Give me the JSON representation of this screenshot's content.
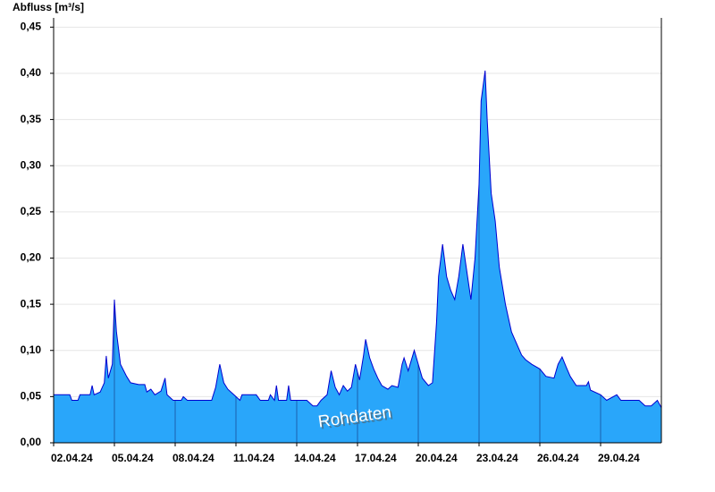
{
  "chart_data": {
    "type": "area",
    "y_label": "Abfluss [m³/s]",
    "annotation": "Rohdaten",
    "x": [
      0,
      0.8,
      0.9,
      1.2,
      1.3,
      1.8,
      1.9,
      2.0,
      2.3,
      2.5,
      2.6,
      2.7,
      2.9,
      3.0,
      3.1,
      3.3,
      3.6,
      3.8,
      4.2,
      4.5,
      4.6,
      4.8,
      5.0,
      5.3,
      5.5,
      5.6,
      5.9,
      6.3,
      6.4,
      6.6,
      7.5,
      7.8,
      8.0,
      8.2,
      8.4,
      8.6,
      8.9,
      9.2,
      9.3,
      10.0,
      10.2,
      10.6,
      10.7,
      10.9,
      11.0,
      11.1,
      11.5,
      11.6,
      11.7,
      12.5,
      12.8,
      13.0,
      13.2,
      13.5,
      13.7,
      13.9,
      14.1,
      14.3,
      14.5,
      14.7,
      14.9,
      15.1,
      15.3,
      15.4,
      15.6,
      15.8,
      16.0,
      16.2,
      16.5,
      16.7,
      17.0,
      17.2,
      17.3,
      17.5,
      17.8,
      18.0,
      18.2,
      18.5,
      18.7,
      18.9,
      19.0,
      19.2,
      19.4,
      19.6,
      19.8,
      20.0,
      20.2,
      20.4,
      20.6,
      20.8,
      21.0,
      21.1,
      21.3,
      21.4,
      21.6,
      21.8,
      22.0,
      22.3,
      22.6,
      22.9,
      23.1,
      23.3,
      23.6,
      24.0,
      24.3,
      24.7,
      24.9,
      25.1,
      25.3,
      25.5,
      25.8,
      26.3,
      26.4,
      26.5,
      27.0,
      27.3,
      27.8,
      28.0,
      28.9,
      29.2,
      29.5,
      29.8,
      30.0
    ],
    "series": [
      {
        "color": "#29a6fa",
        "line_color": "#0000d0",
        "values": [
          0.052,
          0.052,
          0.046,
          0.046,
          0.052,
          0.052,
          0.062,
          0.052,
          0.055,
          0.065,
          0.094,
          0.07,
          0.085,
          0.155,
          0.12,
          0.085,
          0.072,
          0.065,
          0.063,
          0.063,
          0.055,
          0.058,
          0.052,
          0.056,
          0.07,
          0.052,
          0.046,
          0.046,
          0.05,
          0.046,
          0.046,
          0.046,
          0.06,
          0.085,
          0.065,
          0.058,
          0.052,
          0.046,
          0.052,
          0.052,
          0.046,
          0.046,
          0.052,
          0.046,
          0.062,
          0.046,
          0.046,
          0.062,
          0.046,
          0.046,
          0.04,
          0.04,
          0.046,
          0.052,
          0.078,
          0.06,
          0.052,
          0.062,
          0.056,
          0.06,
          0.085,
          0.068,
          0.095,
          0.112,
          0.092,
          0.08,
          0.07,
          0.062,
          0.058,
          0.062,
          0.06,
          0.085,
          0.092,
          0.078,
          0.1,
          0.085,
          0.07,
          0.062,
          0.065,
          0.13,
          0.18,
          0.215,
          0.18,
          0.165,
          0.155,
          0.18,
          0.215,
          0.185,
          0.155,
          0.2,
          0.28,
          0.37,
          0.403,
          0.35,
          0.27,
          0.24,
          0.19,
          0.15,
          0.12,
          0.105,
          0.095,
          0.09,
          0.085,
          0.08,
          0.072,
          0.07,
          0.085,
          0.093,
          0.082,
          0.072,
          0.062,
          0.062,
          0.066,
          0.057,
          0.052,
          0.046,
          0.052,
          0.046,
          0.046,
          0.04,
          0.04,
          0.046,
          0.038
        ]
      }
    ],
    "xlim": [
      0,
      30
    ],
    "xticks": [
      {
        "value": 0,
        "label": "02.04.24"
      },
      {
        "value": 3,
        "label": "05.04.24"
      },
      {
        "value": 6,
        "label": "08.04.24"
      },
      {
        "value": 9,
        "label": "11.04.24"
      },
      {
        "value": 12,
        "label": "14.04.24"
      },
      {
        "value": 15,
        "label": "17.04.24"
      },
      {
        "value": 18,
        "label": "20.04.24"
      },
      {
        "value": 21,
        "label": "23.04.24"
      },
      {
        "value": 24,
        "label": "26.04.24"
      },
      {
        "value": 27,
        "label": "29.04.24"
      }
    ],
    "ylim": [
      0,
      0.46
    ],
    "yticks": [
      {
        "value": 0,
        "label": "0,00"
      },
      {
        "value": 0.05,
        "label": "0,05"
      },
      {
        "value": 0.1,
        "label": "0,10"
      },
      {
        "value": 0.15,
        "label": "0,15"
      },
      {
        "value": 0.2,
        "label": "0,20"
      },
      {
        "value": 0.25,
        "label": "0,25"
      },
      {
        "value": 0.3,
        "label": "0,30"
      },
      {
        "value": 0.35,
        "label": "0,35"
      },
      {
        "value": 0.4,
        "label": "0,40"
      },
      {
        "value": 0.45,
        "label": "0,45"
      }
    ],
    "grid": true
  }
}
